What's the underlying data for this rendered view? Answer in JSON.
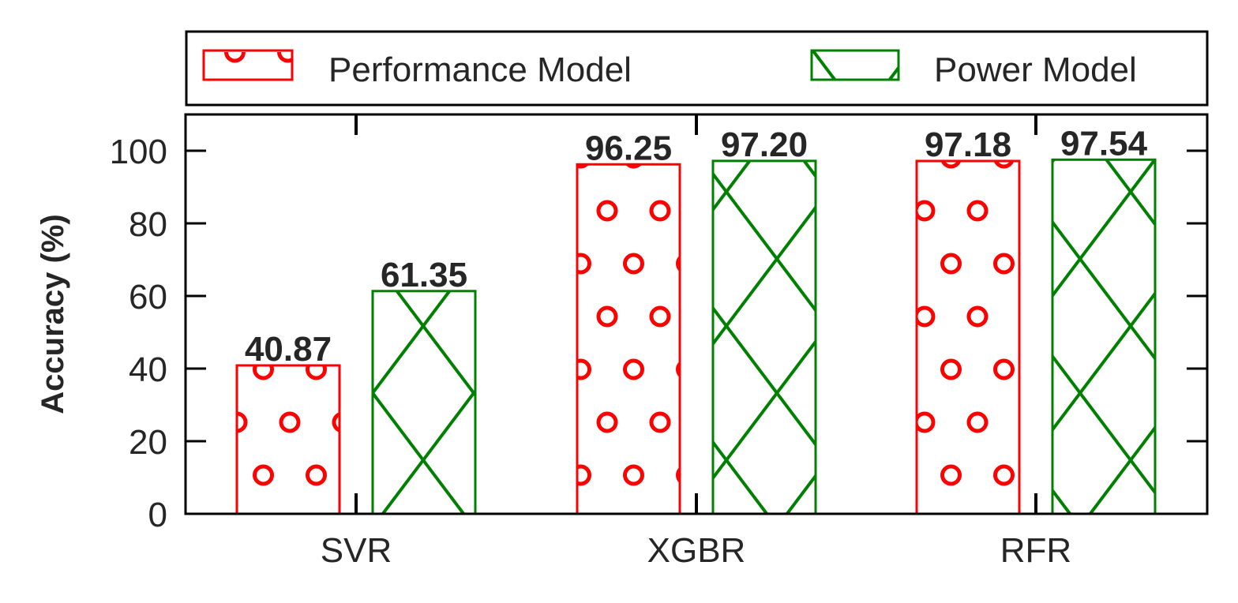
{
  "chart_data": {
    "type": "bar",
    "categories": [
      "SVR",
      "XGBR",
      "RFR"
    ],
    "series": [
      {
        "name": "Performance Model",
        "values": [
          40.87,
          96.25,
          97.18
        ],
        "labels": [
          "40.87",
          "96.25",
          "97.18"
        ],
        "color": "#ff0000",
        "pattern": "circles"
      },
      {
        "name": "Power Model",
        "values": [
          61.35,
          97.2,
          97.54
        ],
        "labels": [
          "61.35",
          "97.20",
          "97.54"
        ],
        "color": "#008000",
        "pattern": "crosshatch"
      }
    ],
    "ylabel": "Accuracy (%)",
    "ylim": [
      0,
      110
    ],
    "yticks": [
      0,
      20,
      40,
      60,
      80,
      100
    ],
    "ytick_labels": [
      "0",
      "20",
      "40",
      "60",
      "80",
      "100"
    ],
    "legend_position": "top",
    "grid": false
  }
}
